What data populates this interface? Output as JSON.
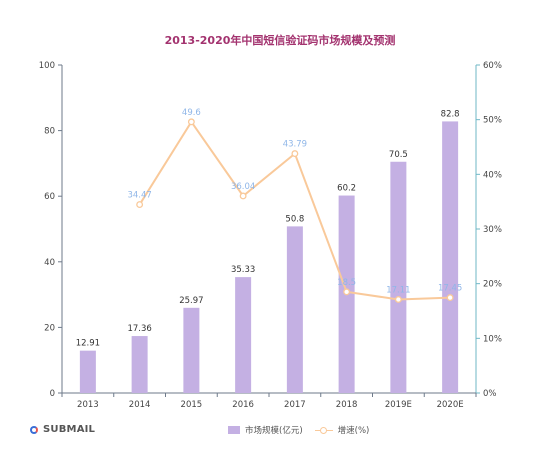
{
  "chart_data": {
    "type": "bar",
    "title": "2013-2020年中国短信验证码市场规模及预测",
    "categories": [
      "2013",
      "2014",
      "2015",
      "2016",
      "2017",
      "2018",
      "2019E",
      "2020E"
    ],
    "series": [
      {
        "name": "市场规模(亿元)",
        "type": "bar",
        "axis": "left",
        "values": [
          12.91,
          17.36,
          25.97,
          35.33,
          50.8,
          60.2,
          70.5,
          82.8
        ],
        "labels": [
          "12.91",
          "17.36",
          "25.97",
          "35.33",
          "50.8",
          "60.2",
          "70.5",
          "82.8"
        ],
        "color": "#c4b0e3"
      },
      {
        "name": "增速(%)",
        "type": "line",
        "axis": "right",
        "values": [
          null,
          34.47,
          49.6,
          36.04,
          43.79,
          18.5,
          17.11,
          17.45
        ],
        "labels": [
          "",
          "34.47",
          "49.6",
          "36.04",
          "43.79",
          "18.5",
          "17.11",
          "17.45"
        ],
        "color": "#f9c99a"
      }
    ],
    "ylim_left": [
      0,
      100
    ],
    "yticks_left": [
      "0",
      "20",
      "40",
      "60",
      "80",
      "100"
    ],
    "ylim_right": [
      0,
      60
    ],
    "yticks_right": [
      "0%",
      "10%",
      "20%",
      "30%",
      "40%",
      "50%",
      "60%"
    ],
    "legend": "bottom"
  },
  "brand": "SUBMAIL",
  "colors": {
    "title": "#a3336f",
    "bar_label": "#333333",
    "line_label": "#8fb6e8",
    "right_axis": "#6fb7c6"
  }
}
